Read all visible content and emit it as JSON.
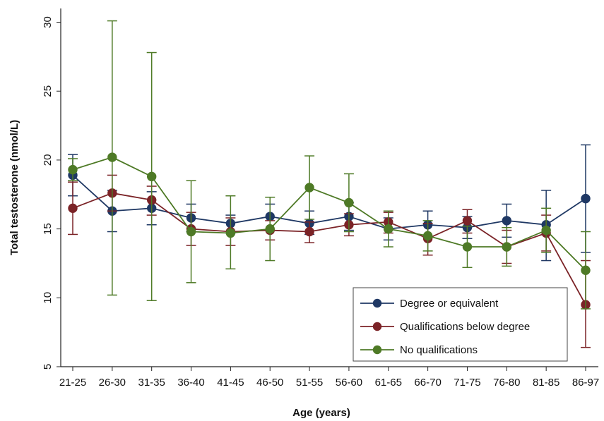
{
  "chart_data": {
    "type": "line",
    "xlabel": "Age (years)",
    "ylabel": "Total testosterone (nmol/L)",
    "ylim": [
      5,
      31
    ],
    "yticks": [
      5,
      10,
      15,
      20,
      25,
      30
    ],
    "grid": false,
    "legend_position": "bottom-right",
    "categories": [
      "21-25",
      "26-30",
      "31-35",
      "36-40",
      "41-45",
      "46-50",
      "51-55",
      "56-60",
      "61-65",
      "66-70",
      "71-75",
      "76-80",
      "81-85",
      "86-97"
    ],
    "series": [
      {
        "name": "Degree or equivalent",
        "color": "#1f3864",
        "values": [
          18.9,
          16.3,
          16.5,
          15.8,
          15.4,
          15.9,
          15.4,
          15.9,
          15.0,
          15.3,
          15.1,
          15.6,
          15.3,
          17.2
        ],
        "lower": [
          17.4,
          14.8,
          15.3,
          14.8,
          14.7,
          14.9,
          14.6,
          14.9,
          14.2,
          14.4,
          14.3,
          14.4,
          12.7,
          13.3
        ],
        "upper": [
          20.4,
          17.8,
          17.7,
          16.8,
          16.0,
          16.8,
          16.3,
          16.9,
          15.8,
          16.3,
          15.9,
          16.8,
          17.8,
          21.1
        ]
      },
      {
        "name": "Qualifications below degree",
        "color": "#7b2327",
        "values": [
          16.5,
          17.6,
          17.1,
          15.0,
          14.8,
          14.9,
          14.8,
          15.3,
          15.5,
          14.3,
          15.6,
          13.7,
          14.7,
          9.5
        ],
        "lower": [
          14.6,
          16.3,
          16.0,
          13.8,
          13.8,
          14.2,
          14.0,
          14.5,
          14.7,
          13.1,
          14.7,
          12.5,
          13.4,
          6.4
        ],
        "upper": [
          18.4,
          18.9,
          18.1,
          16.2,
          15.8,
          15.6,
          15.5,
          16.1,
          16.2,
          15.4,
          16.4,
          14.9,
          16.0,
          12.7
        ]
      },
      {
        "name": "No qualifications",
        "color": "#4e7a26",
        "values": [
          19.3,
          20.2,
          18.8,
          14.8,
          14.7,
          15.0,
          18.0,
          16.9,
          15.0,
          14.5,
          13.7,
          13.7,
          14.9,
          12.0
        ],
        "lower": [
          18.5,
          10.2,
          9.8,
          11.1,
          12.1,
          12.7,
          15.7,
          14.8,
          13.7,
          13.4,
          12.2,
          12.3,
          13.3,
          9.2
        ],
        "upper": [
          20.1,
          30.1,
          27.8,
          18.5,
          17.4,
          17.3,
          20.3,
          19.0,
          16.3,
          15.6,
          15.2,
          15.1,
          16.5,
          14.8
        ]
      }
    ]
  }
}
